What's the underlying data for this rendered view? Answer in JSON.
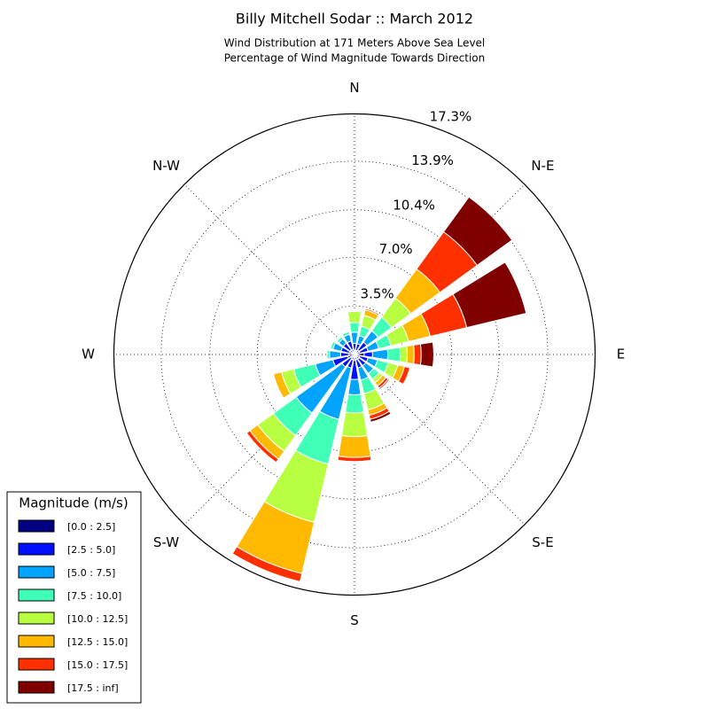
{
  "chart_data": {
    "type": "windrose",
    "title": "Billy Mitchell Sodar :: March 2012",
    "subtitle": [
      "Wind Distribution at 171 Meters Above Sea Level",
      "Percentage of Wind Magnitude Towards Direction"
    ],
    "categories": [
      "N",
      null,
      "N-E",
      null,
      "E",
      null,
      "S-E",
      null,
      "S",
      null,
      "S-W",
      null,
      "W",
      null,
      "N-W",
      null
    ],
    "rlim": [
      0,
      17.3
    ],
    "rticks": [
      {
        "value": 3.5,
        "label": "3.5%"
      },
      {
        "value": 7.0,
        "label": "7.0%"
      },
      {
        "value": 10.4,
        "label": "10.4%"
      },
      {
        "value": 13.9,
        "label": "13.9%"
      },
      {
        "value": 17.3,
        "label": "17.3%"
      }
    ],
    "grid": true,
    "legend_title": "Magnitude (m/s)",
    "legend_position": "lower-left",
    "series": [
      {
        "name": "[0.0 : 2.5]",
        "color": "#000080",
        "values": [
          0.3,
          0.3,
          0.4,
          0.4,
          0.7,
          0.4,
          0.4,
          0.4,
          0.4,
          0.4,
          0.3,
          0.5,
          0.4,
          0.4,
          0.4,
          0.4
        ]
      },
      {
        "name": "[2.5 : 5.0]",
        "color": "#0010ff",
        "values": [
          0.5,
          0.5,
          0.7,
          0.6,
          0.6,
          0.6,
          0.6,
          0.6,
          1.4,
          0.6,
          0.8,
          1.1,
          0.6,
          0.6,
          0.6,
          0.6
        ]
      },
      {
        "name": "[5.0 : 7.5]",
        "color": "#00a4ff",
        "values": [
          0.8,
          0.6,
          1.0,
          0.8,
          1.1,
          0.7,
          0.7,
          0.9,
          1.1,
          3.8,
          4.1,
          1.3,
          0.8,
          0.6,
          0.4,
          0.5
        ]
      },
      {
        "name": "[7.5 : 10.0]",
        "color": "#40ffb7",
        "values": [
          0.7,
          0.7,
          1.2,
          0.9,
          0.9,
          0.8,
          0.5,
          1.0,
          1.3,
          3.3,
          2.0,
          1.6,
          0.2,
          0.2,
          0.2,
          0.2
        ]
      },
      {
        "name": "[10.0 : 12.5]",
        "color": "#b7ff40",
        "values": [
          0.8,
          0.8,
          1.7,
          1.3,
          0.5,
          0.7,
          0.3,
          1.2,
          1.7,
          4.3,
          1.4,
          0.9,
          0,
          0,
          0,
          0
        ]
      },
      {
        "name": "[12.5 : 15.0]",
        "color": "#ffb900",
        "values": [
          0,
          0.4,
          2.6,
          1.6,
          0.5,
          0.5,
          0.3,
          0.4,
          1.5,
          3.8,
          0.7,
          0.6,
          0,
          0,
          0,
          0
        ]
      },
      {
        "name": "[15.0 : 17.5]",
        "color": "#ff3000",
        "values": [
          0,
          0.1,
          3.3,
          2.7,
          0.5,
          0.4,
          0.2,
          0.3,
          0.3,
          0.6,
          0.3,
          0,
          0,
          0,
          0,
          0
        ]
      },
      {
        "name": "[17.5 : inf]",
        "color": "#800000",
        "values": [
          0,
          0,
          3.1,
          4.4,
          0.9,
          0,
          0.1,
          0.2,
          0,
          0,
          0,
          0,
          0,
          0,
          0,
          0
        ]
      }
    ]
  }
}
